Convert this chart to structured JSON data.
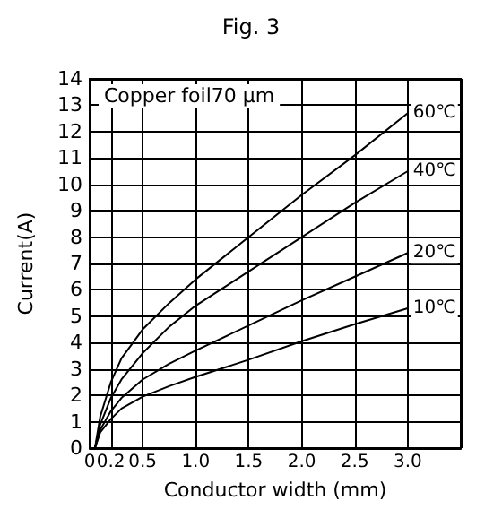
{
  "chart_data": {
    "type": "line",
    "title": "Fig. 3",
    "xlabel": "Conductor width (mm)",
    "ylabel": "Current(A)",
    "annotations": [
      "Copper foil70 μm"
    ],
    "xlim": [
      0,
      3.5
    ],
    "xticks": [
      0,
      {
        "value": 0.2,
        "label": "0.2"
      },
      {
        "value": 0.5,
        "label": "0.5"
      },
      {
        "value": 1,
        "label": "1.0"
      },
      {
        "value": 1.5,
        "label": "1.5"
      },
      {
        "value": 2,
        "label": "2.0"
      },
      {
        "value": 2.5,
        "label": "2.5"
      },
      {
        "value": 3,
        "label": "3.0"
      },
      {
        "value": 3.5,
        "label": null
      }
    ],
    "ylim": [
      0,
      14
    ],
    "yticks": [
      0,
      1,
      2,
      3,
      4,
      5,
      6,
      7,
      8,
      9,
      10,
      11,
      12,
      13,
      14
    ],
    "grid": true,
    "legend": false,
    "marker": "none",
    "line_style": "solid",
    "x": [
      0.05,
      0.1,
      0.2,
      0.3,
      0.5,
      0.75,
      1,
      1.5,
      2,
      2.5,
      3
    ],
    "series": [
      {
        "name": "60℃",
        "color": "#000000",
        "values": [
          0,
          1.2,
          2.5,
          3.4,
          4.5,
          5.5,
          6.4,
          8,
          9.6,
          11.1,
          12.7
        ]
      },
      {
        "name": "40℃",
        "color": "#000000",
        "values": [
          0,
          0.9,
          1.9,
          2.6,
          3.6,
          4.6,
          5.4,
          6.7,
          8,
          9.3,
          10.5
        ]
      },
      {
        "name": "20℃",
        "color": "#000000",
        "values": [
          0,
          0.7,
          1.4,
          1.9,
          2.6,
          3.2,
          3.7,
          4.65,
          5.6,
          6.5,
          7.4
        ]
      },
      {
        "name": "10℃",
        "color": "#000000",
        "values": [
          0,
          0.6,
          1.1,
          1.5,
          1.95,
          2.35,
          2.7,
          3.35,
          4.05,
          4.7,
          5.3
        ]
      }
    ]
  }
}
